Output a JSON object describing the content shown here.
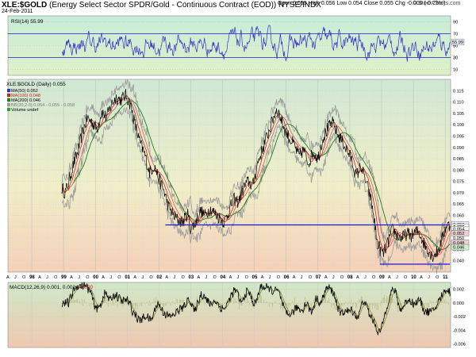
{
  "header": {
    "symbol": "XLE:$GOLD",
    "description": "(Energy Select Sector SPDR/Gold - Continuous Contract (EOD)) NYSE/INDX",
    "date": "24-Feb-2011",
    "quote": "Open 0.055  High 0.056  Low 0.054  Close 0.055  Chg -0.000 (-0.75%)",
    "brand": "© StockCharts.com"
  },
  "legends": {
    "rsi": "RSI(14) 55.99",
    "main_title": "XLE:$GOLD (Daily) 0.055",
    "ma50": "MA(50) 0.052",
    "ma100": "MA(100) 0.048",
    "ma200": "MA(200) 0.046",
    "bb": "BB(20,2.0) 0.054 - 0.055 - 0.058",
    "volume": "Volume undef",
    "macd_a": "MACD(12,26,9) 0.001, 0.001",
    "macd_b": ", -0.000"
  },
  "colors": {
    "rsi_line": "#3232c8",
    "rsi_bg_top": "#c8ecd8",
    "rsi_bg_bottom": "#dff0c8",
    "main_bg_top": "#cfe8d4",
    "main_bg_bottom": "#f4d0b8",
    "macd_bg_top": "#cfe8c8",
    "macd_bg_bottom": "#f0c8b0",
    "price_line": "#000000",
    "bb_band": "#9c9c9c",
    "ma50": "#d02020",
    "ma100": "#c86060",
    "ma200": "#208020",
    "hline": "#1a1ad8",
    "macd_line": "#000000",
    "signal_line": "#909040",
    "volume": "#30a030"
  },
  "chart_data": {
    "type": "line",
    "title": "XLE:$GOLD (Daily) 0.055",
    "x_ticks": [
      "A",
      "J",
      "O",
      "98",
      "A",
      "J",
      "O",
      "99",
      "A",
      "J",
      "O",
      "00",
      "A",
      "J",
      "O",
      "01",
      "A",
      "J",
      "O",
      "02",
      "A",
      "J",
      "O",
      "03",
      "A",
      "J",
      "O",
      "04",
      "A",
      "J",
      "O",
      "05",
      "A",
      "J",
      "O",
      "06",
      "A",
      "J",
      "O",
      "07",
      "A",
      "J",
      "O",
      "08",
      "A",
      "J",
      "O",
      "09",
      "A",
      "J",
      "O",
      "10",
      "A",
      "J",
      "O",
      "11"
    ],
    "year_ticks": [
      "98",
      "99",
      "00",
      "01",
      "02",
      "03",
      "04",
      "05",
      "06",
      "07",
      "08",
      "09",
      "10",
      "11"
    ],
    "rsi": {
      "y_ticks": [
        90,
        70,
        50,
        30,
        10
      ],
      "overbought": 70,
      "oversold": 30,
      "last": 55.99,
      "last_label": "55.99",
      "ylim": [
        0,
        100
      ]
    },
    "price": {
      "ylim": [
        0.035,
        0.12
      ],
      "y_ticks": [
        0.115,
        0.11,
        0.105,
        0.1,
        0.095,
        0.09,
        0.085,
        0.08,
        0.075,
        0.07,
        0.065,
        0.06,
        0.055,
        0.05,
        0.045,
        0.04
      ],
      "y_tick_labels": [
        "0.115",
        "0.110",
        "0.105",
        "0.100",
        "0.095",
        "0.090",
        "0.085",
        "0.080",
        "0.075",
        "0.070",
        "0.065",
        "0.060",
        "0.055",
        "0.050",
        "0.045",
        "0.040"
      ],
      "last_price": 0.055,
      "price_tags": [
        {
          "label": "0.056",
          "value": 0.056,
          "color": "#e6f0ff"
        },
        {
          "label": "0.055",
          "value": 0.055,
          "color": "#ffffff"
        },
        {
          "label": "0.054",
          "value": 0.054,
          "color": "#ffffff"
        },
        {
          "label": "0.052",
          "value": 0.0522,
          "color": "#f0d0d0"
        },
        {
          "label": "0.048",
          "value": 0.048,
          "color": "#f0d0d0"
        },
        {
          "label": "0.046",
          "value": 0.046,
          "color": "#d0f0d0"
        }
      ],
      "support_resistance": [
        {
          "name": "upper",
          "value": 0.0558,
          "from_year": 2002.2,
          "to_year": 2011.15
        },
        {
          "name": "lower",
          "value": 0.0385,
          "from_year": 2008.95,
          "to_year": 2011.15
        }
      ],
      "series_points": [
        [
          1998.95,
          0.072
        ],
        [
          1999.05,
          0.07
        ],
        [
          1999.15,
          0.074
        ],
        [
          1999.3,
          0.082
        ],
        [
          1999.45,
          0.088
        ],
        [
          1999.6,
          0.097
        ],
        [
          1999.75,
          0.103
        ],
        [
          1999.9,
          0.101
        ],
        [
          2000.05,
          0.098
        ],
        [
          2000.2,
          0.106
        ],
        [
          2000.35,
          0.103
        ],
        [
          2000.5,
          0.109
        ],
        [
          2000.65,
          0.112
        ],
        [
          2000.8,
          0.111
        ],
        [
          2000.95,
          0.113
        ],
        [
          2001.1,
          0.109
        ],
        [
          2001.25,
          0.1
        ],
        [
          2001.4,
          0.092
        ],
        [
          2001.55,
          0.087
        ],
        [
          2001.7,
          0.079
        ],
        [
          2001.85,
          0.082
        ],
        [
          2002.0,
          0.076
        ],
        [
          2002.15,
          0.071
        ],
        [
          2002.3,
          0.064
        ],
        [
          2002.45,
          0.06
        ],
        [
          2002.6,
          0.058
        ],
        [
          2002.75,
          0.057
        ],
        [
          2002.9,
          0.061
        ],
        [
          2003.0,
          0.054
        ],
        [
          2003.15,
          0.057
        ],
        [
          2003.3,
          0.062
        ],
        [
          2003.45,
          0.06
        ],
        [
          2003.6,
          0.063
        ],
        [
          2003.75,
          0.061
        ],
        [
          2003.9,
          0.059
        ],
        [
          2004.05,
          0.057
        ],
        [
          2004.2,
          0.062
        ],
        [
          2004.35,
          0.067
        ],
        [
          2004.5,
          0.066
        ],
        [
          2004.65,
          0.072
        ],
        [
          2004.8,
          0.075
        ],
        [
          2004.95,
          0.073
        ],
        [
          2005.1,
          0.083
        ],
        [
          2005.25,
          0.089
        ],
        [
          2005.4,
          0.095
        ],
        [
          2005.55,
          0.101
        ],
        [
          2005.7,
          0.107
        ],
        [
          2005.8,
          0.104
        ],
        [
          2005.95,
          0.098
        ],
        [
          2006.1,
          0.094
        ],
        [
          2006.25,
          0.091
        ],
        [
          2006.4,
          0.086
        ],
        [
          2006.55,
          0.089
        ],
        [
          2006.7,
          0.083
        ],
        [
          2006.85,
          0.088
        ],
        [
          2007.0,
          0.085
        ],
        [
          2007.15,
          0.094
        ],
        [
          2007.3,
          0.098
        ],
        [
          2007.45,
          0.101
        ],
        [
          2007.6,
          0.096
        ],
        [
          2007.75,
          0.093
        ],
        [
          2007.9,
          0.089
        ],
        [
          2008.05,
          0.085
        ],
        [
          2008.2,
          0.077
        ],
        [
          2008.35,
          0.082
        ],
        [
          2008.5,
          0.075
        ],
        [
          2008.65,
          0.068
        ],
        [
          2008.75,
          0.06
        ],
        [
          2008.85,
          0.049
        ],
        [
          2008.95,
          0.045
        ],
        [
          2009.05,
          0.043
        ],
        [
          2009.2,
          0.048
        ],
        [
          2009.35,
          0.054
        ],
        [
          2009.5,
          0.051
        ],
        [
          2009.65,
          0.05
        ],
        [
          2009.8,
          0.052
        ],
        [
          2009.95,
          0.051
        ],
        [
          2010.1,
          0.053
        ],
        [
          2010.2,
          0.052
        ],
        [
          2010.35,
          0.047
        ],
        [
          2010.5,
          0.044
        ],
        [
          2010.6,
          0.042
        ],
        [
          2010.75,
          0.044
        ],
        [
          2010.85,
          0.047
        ],
        [
          2010.95,
          0.052
        ],
        [
          2011.05,
          0.056
        ],
        [
          2011.15,
          0.055
        ]
      ]
    },
    "macd": {
      "ylim": [
        -0.0065,
        0.003
      ],
      "y_ticks": [
        0.002,
        0.0,
        -0.002,
        -0.004,
        -0.006
      ],
      "y_tick_labels": [
        "0.002",
        "0.000",
        "-0.002",
        "-0.004",
        "-0.006"
      ],
      "last_macd": 0.001,
      "last_signal": 0.001,
      "histogram": -0.0
    }
  }
}
